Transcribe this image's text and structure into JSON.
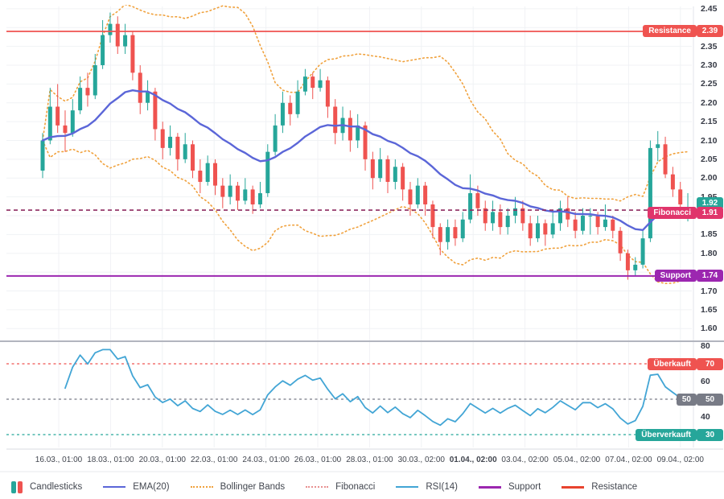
{
  "chart_data": {
    "type": "candlestick",
    "title": "",
    "price_range": [
      1.6,
      2.45
    ],
    "price_step": 0.05,
    "rsi_range": [
      30,
      80
    ],
    "y_ticks_price": [
      "2.45",
      "2.35",
      "2.30",
      "2.25",
      "2.20",
      "2.15",
      "2.10",
      "2.05",
      "2.00",
      "1.95",
      "1.85",
      "1.80",
      "1.70",
      "1.65",
      "1.60"
    ],
    "y_ticks_rsi": [
      "80",
      "60",
      "40"
    ],
    "x_ticks": [
      {
        "label": "16.03., 01:00",
        "bold": false
      },
      {
        "label": "18.03., 01:00",
        "bold": false
      },
      {
        "label": "20.03., 01:00",
        "bold": false
      },
      {
        "label": "22.03., 01:00",
        "bold": false
      },
      {
        "label": "24.03., 01:00",
        "bold": false
      },
      {
        "label": "26.03., 01:00",
        "bold": false
      },
      {
        "label": "28.03., 01:00",
        "bold": false
      },
      {
        "label": "30.03., 02:00",
        "bold": false
      },
      {
        "label": "01.04., 02:00",
        "bold": true
      },
      {
        "label": "03.04., 02:00",
        "bold": false
      },
      {
        "label": "05.04., 02:00",
        "bold": false
      },
      {
        "label": "07.04., 02:00",
        "bold": false
      },
      {
        "label": "09.04., 02:00",
        "bold": false
      }
    ],
    "candles": [
      [
        2.02,
        2.12,
        2.0,
        2.1
      ],
      [
        2.1,
        2.24,
        2.09,
        2.19
      ],
      [
        2.19,
        2.25,
        2.12,
        2.14
      ],
      [
        2.14,
        2.18,
        2.07,
        2.12
      ],
      [
        2.12,
        2.21,
        2.11,
        2.18
      ],
      [
        2.18,
        2.27,
        2.17,
        2.24
      ],
      [
        2.24,
        2.28,
        2.19,
        2.22
      ],
      [
        2.22,
        2.33,
        2.21,
        2.3
      ],
      [
        2.3,
        2.42,
        2.29,
        2.38
      ],
      [
        2.38,
        2.44,
        2.36,
        2.41
      ],
      [
        2.41,
        2.43,
        2.33,
        2.35
      ],
      [
        2.35,
        2.41,
        2.33,
        2.38
      ],
      [
        2.38,
        2.39,
        2.26,
        2.28
      ],
      [
        2.28,
        2.3,
        2.17,
        2.2
      ],
      [
        2.2,
        2.26,
        2.18,
        2.23
      ],
      [
        2.23,
        2.24,
        2.1,
        2.13
      ],
      [
        2.13,
        2.15,
        2.05,
        2.08
      ],
      [
        2.08,
        2.14,
        2.06,
        2.11
      ],
      [
        2.11,
        2.12,
        2.02,
        2.05
      ],
      [
        2.05,
        2.12,
        2.04,
        2.09
      ],
      [
        2.09,
        2.1,
        2.0,
        2.02
      ],
      [
        2.02,
        2.05,
        1.96,
        1.99
      ],
      [
        1.99,
        2.06,
        1.98,
        2.04
      ],
      [
        2.04,
        2.05,
        1.955,
        1.98
      ],
      [
        1.98,
        2.0,
        1.92,
        1.95
      ],
      [
        1.95,
        2.01,
        1.93,
        1.98
      ],
      [
        1.98,
        1.99,
        1.915,
        1.94
      ],
      [
        1.94,
        2.0,
        1.93,
        1.97
      ],
      [
        1.97,
        1.98,
        1.905,
        1.93
      ],
      [
        1.93,
        1.99,
        1.92,
        1.96
      ],
      [
        1.96,
        2.09,
        1.95,
        2.07
      ],
      [
        2.07,
        2.17,
        2.06,
        2.14
      ],
      [
        2.14,
        2.23,
        2.12,
        2.2
      ],
      [
        2.2,
        2.22,
        2.14,
        2.17
      ],
      [
        2.17,
        2.26,
        2.16,
        2.23
      ],
      [
        2.23,
        2.29,
        2.22,
        2.27
      ],
      [
        2.27,
        2.28,
        2.21,
        2.24
      ],
      [
        2.24,
        2.29,
        2.23,
        2.26
      ],
      [
        2.26,
        2.27,
        2.16,
        2.19
      ],
      [
        2.19,
        2.21,
        2.09,
        2.12
      ],
      [
        2.12,
        2.19,
        2.1,
        2.16
      ],
      [
        2.16,
        2.18,
        2.07,
        2.1
      ],
      [
        2.1,
        2.17,
        2.08,
        2.14
      ],
      [
        2.14,
        2.15,
        2.02,
        2.05
      ],
      [
        2.05,
        2.07,
        1.97,
        2.0
      ],
      [
        2.0,
        2.08,
        1.99,
        2.05
      ],
      [
        2.05,
        2.06,
        1.96,
        1.99
      ],
      [
        1.99,
        2.05,
        1.97,
        2.03
      ],
      [
        2.03,
        2.04,
        1.94,
        1.97
      ],
      [
        1.97,
        1.99,
        1.9,
        1.93
      ],
      [
        1.93,
        2.0,
        1.92,
        1.98
      ],
      [
        1.98,
        1.99,
        1.9,
        1.93
      ],
      [
        1.93,
        1.94,
        1.84,
        1.87
      ],
      [
        1.87,
        1.88,
        1.795,
        1.83
      ],
      [
        1.83,
        1.89,
        1.81,
        1.87
      ],
      [
        1.87,
        1.89,
        1.82,
        1.84
      ],
      [
        1.84,
        1.91,
        1.83,
        1.89
      ],
      [
        1.89,
        2.01,
        1.88,
        1.96
      ],
      [
        1.96,
        1.98,
        1.9,
        1.92
      ],
      [
        1.92,
        1.94,
        1.86,
        1.88
      ],
      [
        1.88,
        1.94,
        1.86,
        1.91
      ],
      [
        1.91,
        1.93,
        1.85,
        1.87
      ],
      [
        1.87,
        1.92,
        1.85,
        1.9
      ],
      [
        1.9,
        1.95,
        1.88,
        1.92
      ],
      [
        1.92,
        1.94,
        1.86,
        1.88
      ],
      [
        1.88,
        1.9,
        1.82,
        1.84
      ],
      [
        1.84,
        1.9,
        1.83,
        1.88
      ],
      [
        1.88,
        1.89,
        1.82,
        1.85
      ],
      [
        1.85,
        1.91,
        1.84,
        1.88
      ],
      [
        1.88,
        1.94,
        1.86,
        1.92
      ],
      [
        1.92,
        1.95,
        1.87,
        1.89
      ],
      [
        1.89,
        1.91,
        1.84,
        1.86
      ],
      [
        1.86,
        1.92,
        1.85,
        1.9
      ],
      [
        1.9,
        1.92,
        1.85,
        1.9
      ],
      [
        1.9,
        1.91,
        1.85,
        1.87
      ],
      [
        1.87,
        1.93,
        1.86,
        1.89
      ],
      [
        1.89,
        1.9,
        1.84,
        1.86
      ],
      [
        1.86,
        1.87,
        1.78,
        1.8
      ],
      [
        1.8,
        1.81,
        1.73,
        1.755
      ],
      [
        1.755,
        1.79,
        1.74,
        1.77
      ],
      [
        1.77,
        1.86,
        1.76,
        1.84
      ],
      [
        1.84,
        2.1,
        1.83,
        2.08
      ],
      [
        2.08,
        2.125,
        2.045,
        2.09
      ],
      [
        2.09,
        2.11,
        2.0,
        2.01
      ],
      [
        2.01,
        2.03,
        1.95,
        1.97
      ],
      [
        1.97,
        1.99,
        1.915,
        1.93
      ],
      [
        1.895,
        1.96,
        1.885,
        1.92
      ]
    ],
    "candle_colors": {
      "up": "#26a69a",
      "down": "#ef5350"
    },
    "indicators": {
      "ema": {
        "period": 20,
        "color": "#5b66d8"
      },
      "bollinger": {
        "period": 20,
        "stddev": 2,
        "color": "#f0a13c"
      },
      "rsi": {
        "period": 14,
        "color": "#42a5d5",
        "overbought": 70,
        "mid": 50,
        "oversold": 30,
        "overbought_label": "70",
        "mid_label": "50",
        "oversold_label": "30",
        "current_label": "50",
        "overbought_color": "#ef5350",
        "mid_color": "#787b86",
        "oversold_color": "#26a69a"
      }
    },
    "levels": {
      "resistance": {
        "label": "Resistance",
        "value": 2.39,
        "value_label": "2.39",
        "color": "#ef5350"
      },
      "fibonacci": {
        "label": "Fibonacci",
        "value": 1.91,
        "value_label": "1.91",
        "color": "#8e2b60",
        "badge_color": "#e0356b"
      },
      "support": {
        "label": "Support",
        "value": 1.74,
        "value_label": "1.74",
        "color": "#9c27b0"
      },
      "current_price": {
        "value": 1.92,
        "value_label": "1.92",
        "color": "#26a69a"
      }
    },
    "rsi_labels": {
      "overbought": "Überkauft",
      "oversold": "Überverkauft"
    }
  },
  "legend": {
    "items": [
      {
        "id": "candlesticks",
        "label": "Candlesticks",
        "up_color": "#26a69a",
        "down_color": "#ef5350"
      },
      {
        "id": "ema",
        "label": "EMA(20)",
        "color": "#5b66d8",
        "line": "solid",
        "weight": 2
      },
      {
        "id": "bollinger",
        "label": "Bollinger Bands",
        "color": "#f0a13c",
        "line": "dotted",
        "weight": 2
      },
      {
        "id": "fibonacci",
        "label": "Fibonacci",
        "color": "#e89090",
        "line": "dotted",
        "weight": 2
      },
      {
        "id": "rsi",
        "label": "RSI(14)",
        "color": "#42a5d5",
        "line": "solid",
        "weight": 2
      },
      {
        "id": "support",
        "label": "Support",
        "color": "#9c27b0",
        "line": "solid",
        "weight": 3
      },
      {
        "id": "resistance",
        "label": "Resistance",
        "color": "#e8432e",
        "line": "solid",
        "weight": 3
      }
    ]
  }
}
